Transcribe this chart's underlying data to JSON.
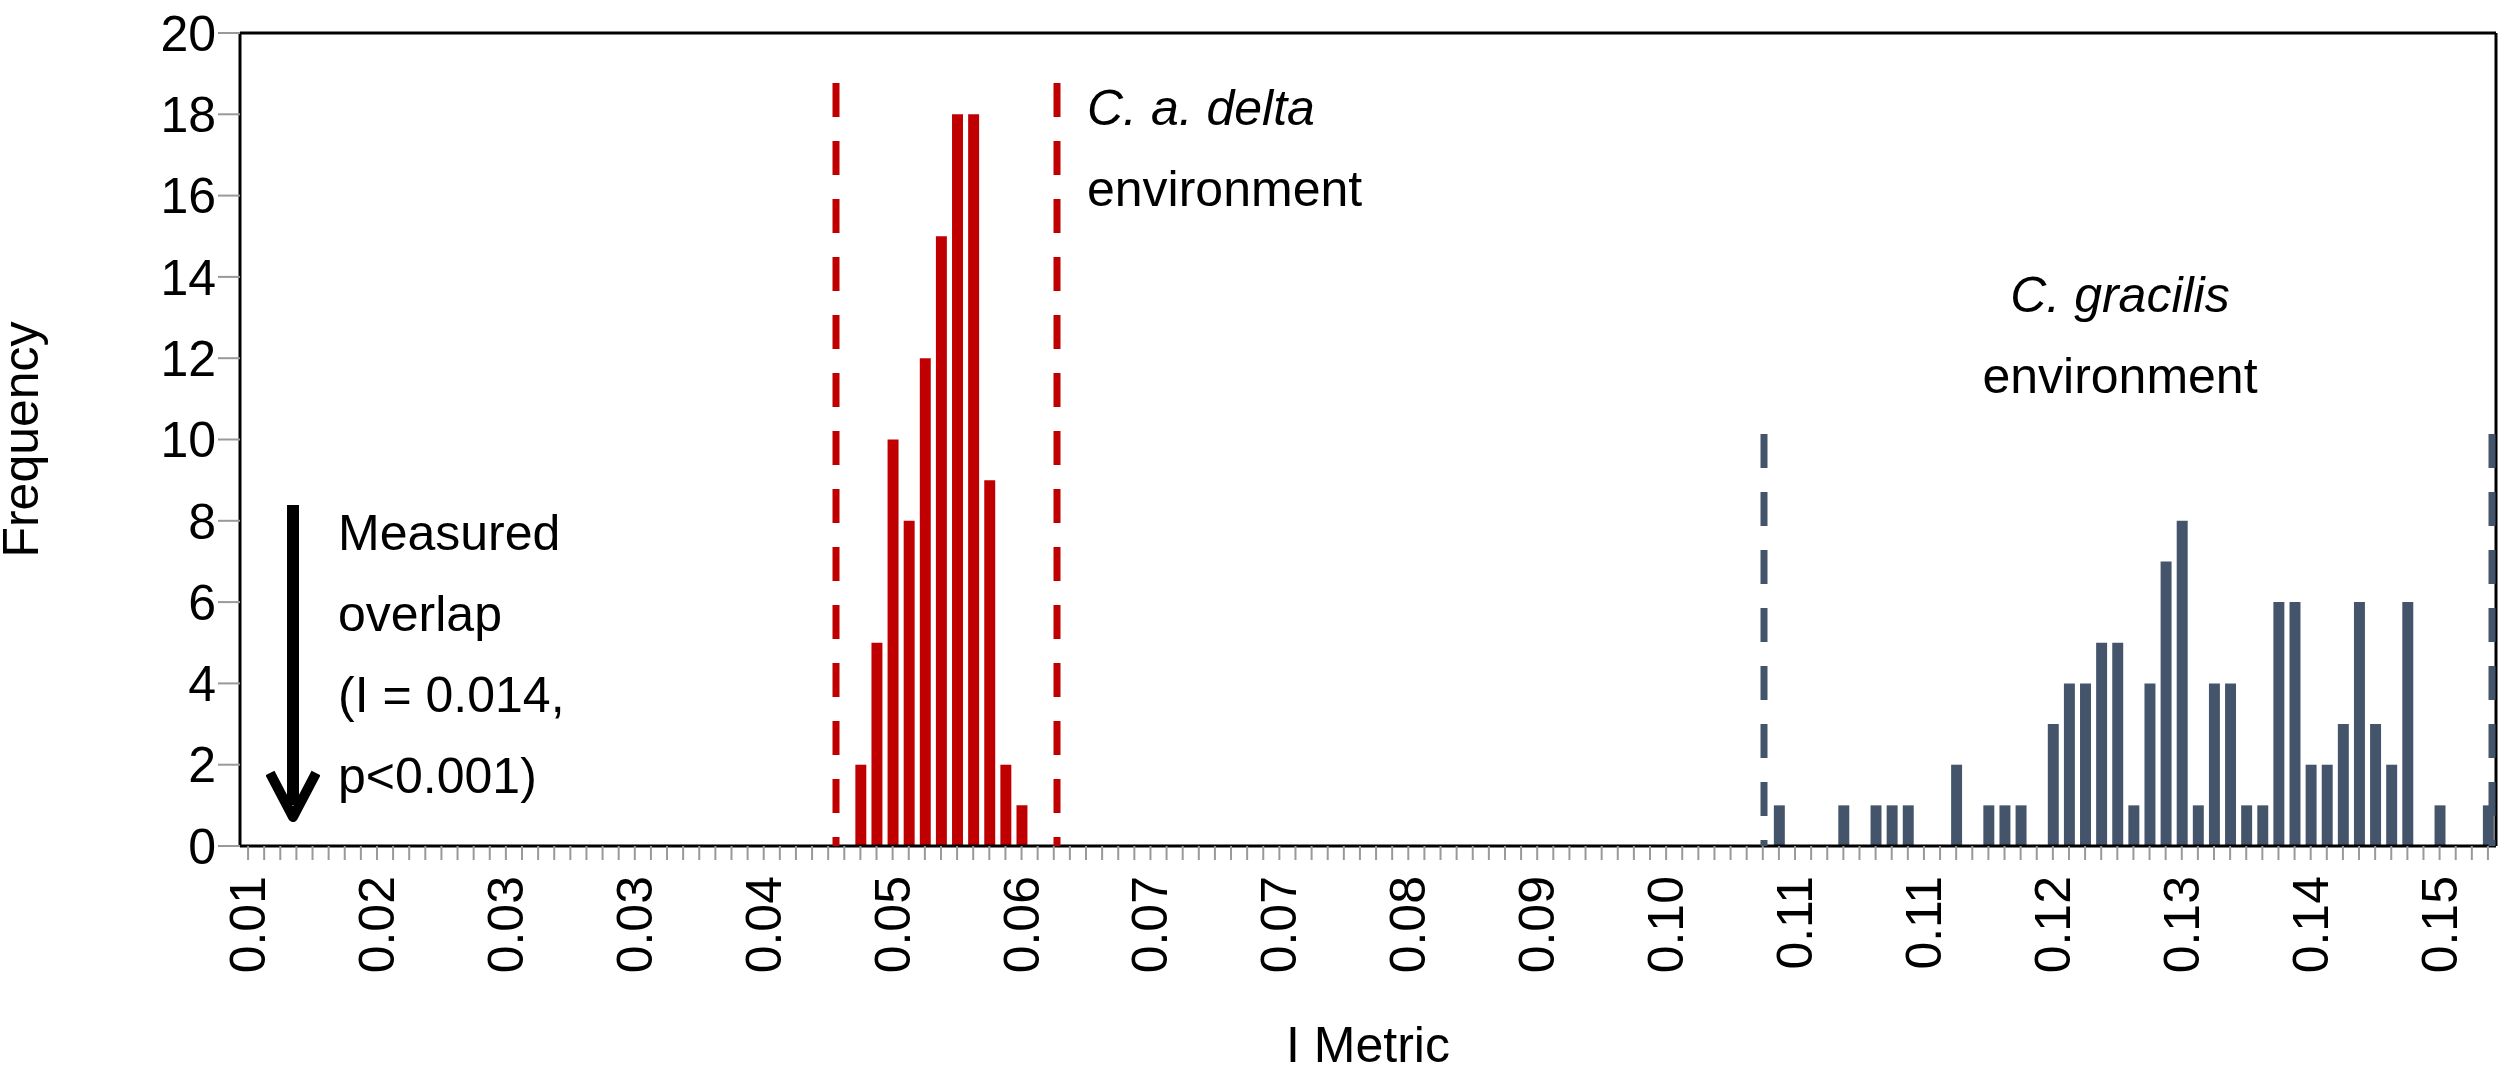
{
  "chart_data": {
    "type": "bar",
    "xlabel": "I Metric",
    "ylabel": "Frequency",
    "categories": [
      "0.01",
      null,
      null,
      null,
      null,
      null,
      null,
      null,
      "0.02",
      null,
      null,
      null,
      null,
      null,
      null,
      null,
      "0.03",
      null,
      null,
      null,
      null,
      null,
      null,
      null,
      "0.03",
      null,
      null,
      null,
      null,
      null,
      null,
      null,
      "0.04",
      null,
      null,
      null,
      null,
      null,
      null,
      null,
      "0.05",
      null,
      null,
      null,
      null,
      null,
      null,
      null,
      "0.06",
      null,
      null,
      null,
      null,
      null,
      null,
      null,
      "0.07",
      null,
      null,
      null,
      null,
      null,
      null,
      null,
      "0.07",
      null,
      null,
      null,
      null,
      null,
      null,
      null,
      "0.08",
      null,
      null,
      null,
      null,
      null,
      null,
      null,
      "0.09",
      null,
      null,
      null,
      null,
      null,
      null,
      null,
      "0.10",
      null,
      null,
      null,
      null,
      null,
      null,
      null,
      "0.11",
      null,
      null,
      null,
      null,
      null,
      null,
      null,
      "0.11",
      null,
      null,
      null,
      null,
      null,
      null,
      null,
      "0.12",
      null,
      null,
      null,
      null,
      null,
      null,
      null,
      "0.13",
      null,
      null,
      null,
      null,
      null,
      null,
      null,
      "0.14",
      null,
      null,
      null,
      null,
      null,
      null,
      null,
      "0.15",
      null,
      null,
      null
    ],
    "series": [
      {
        "color": "#c00000",
        "values": [
          null,
          null,
          null,
          null,
          null,
          null,
          null,
          null,
          null,
          null,
          null,
          null,
          null,
          null,
          null,
          null,
          null,
          null,
          null,
          null,
          null,
          null,
          null,
          null,
          null,
          null,
          null,
          null,
          null,
          null,
          null,
          null,
          null,
          null,
          null,
          null,
          null,
          null,
          2,
          5,
          10,
          8,
          12,
          15,
          18,
          18,
          9,
          2,
          1,
          null,
          null,
          null,
          null,
          null,
          null,
          null,
          null,
          null,
          null,
          null,
          null,
          null,
          null,
          null,
          null,
          null,
          null,
          null,
          null,
          null,
          null,
          null,
          null,
          null,
          null,
          null,
          null,
          null,
          null,
          null,
          null,
          null,
          null,
          null,
          null,
          null,
          null,
          null,
          null,
          null,
          null,
          null,
          null,
          null,
          null,
          null,
          null,
          null,
          null,
          null,
          null,
          null,
          null,
          null,
          null,
          null,
          null,
          null,
          null,
          null,
          null,
          null,
          null,
          null,
          null,
          null,
          null,
          null,
          null,
          null,
          null,
          null,
          null,
          null,
          null,
          null,
          null,
          null,
          null,
          null,
          null,
          null,
          null,
          null,
          null,
          null,
          null,
          null,
          null,
          null
        ]
      },
      {
        "color": "#44546a",
        "values": [
          null,
          null,
          null,
          null,
          null,
          null,
          null,
          null,
          null,
          null,
          null,
          null,
          null,
          null,
          null,
          null,
          null,
          null,
          null,
          null,
          null,
          null,
          null,
          null,
          null,
          null,
          null,
          null,
          null,
          null,
          null,
          null,
          null,
          null,
          null,
          null,
          null,
          null,
          null,
          null,
          null,
          null,
          null,
          null,
          null,
          null,
          null,
          null,
          null,
          null,
          null,
          null,
          null,
          null,
          null,
          null,
          null,
          null,
          null,
          null,
          null,
          null,
          null,
          null,
          null,
          null,
          null,
          null,
          null,
          null,
          null,
          null,
          null,
          null,
          null,
          null,
          null,
          null,
          null,
          null,
          null,
          null,
          null,
          null,
          null,
          null,
          null,
          null,
          null,
          null,
          null,
          null,
          null,
          null,
          null,
          1,
          null,
          null,
          null,
          1,
          null,
          1,
          1,
          1,
          null,
          null,
          2,
          null,
          1,
          1,
          1,
          null,
          3,
          4,
          4,
          5,
          5,
          1,
          4,
          7,
          8,
          1,
          4,
          4,
          1,
          1,
          6,
          6,
          2,
          2,
          3,
          6,
          3,
          2,
          6,
          null,
          1,
          null,
          null,
          1
        ]
      }
    ],
    "ylim": [
      0,
      20
    ],
    "yticks": [
      0,
      2,
      4,
      6,
      8,
      10,
      12,
      14,
      16,
      18,
      20
    ],
    "annotations": [
      "C. a. delta\nenvironment",
      "C. gracilis\nenvironment",
      "Measured\noverlap\n(I = 0.014,\np<0.001)"
    ]
  }
}
